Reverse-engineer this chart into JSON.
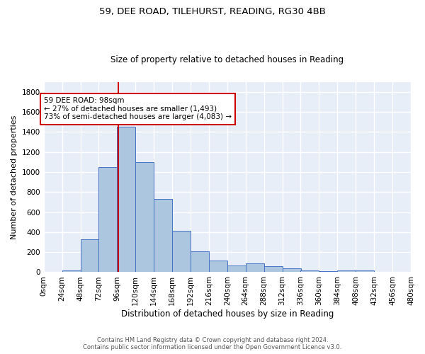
{
  "title1": "59, DEE ROAD, TILEHURST, READING, RG30 4BB",
  "title2": "Size of property relative to detached houses in Reading",
  "xlabel": "Distribution of detached houses by size in Reading",
  "ylabel": "Number of detached properties",
  "bin_edges": [
    0,
    24,
    48,
    72,
    96,
    120,
    144,
    168,
    192,
    216,
    240,
    264,
    288,
    312,
    336,
    360,
    384,
    408,
    432,
    456,
    480
  ],
  "bar_heights": [
    5,
    20,
    330,
    1050,
    1450,
    1100,
    730,
    410,
    205,
    115,
    70,
    90,
    60,
    40,
    15,
    10,
    20,
    15,
    5,
    0
  ],
  "bar_color": "#adc6e0",
  "bar_edge_color": "#4472c4",
  "property_size": 98,
  "vline_color": "#cc0000",
  "annotation_line1": "59 DEE ROAD: 98sqm",
  "annotation_line2": "← 27% of detached houses are smaller (1,493)",
  "annotation_line3": "73% of semi-detached houses are larger (4,083) →",
  "annotation_box_color": "#ffffff",
  "annotation_box_edge": "#cc0000",
  "footer_text": "Contains HM Land Registry data © Crown copyright and database right 2024.\nContains public sector information licensed under the Open Government Licence v3.0.",
  "ylim": [
    0,
    1900
  ],
  "background_color": "#e8eef8",
  "grid_color": "#ffffff",
  "title1_fontsize": 9.5,
  "title2_fontsize": 8.5,
  "ylabel_fontsize": 8,
  "xlabel_fontsize": 8.5,
  "tick_fontsize": 7.5,
  "annotation_fontsize": 7.5
}
